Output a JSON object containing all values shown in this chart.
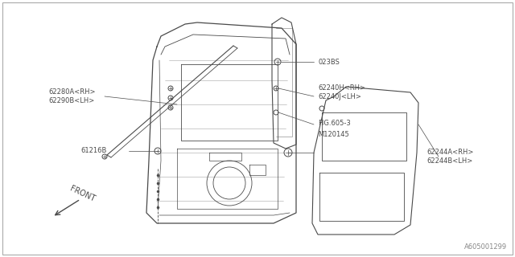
{
  "background_color": "#ffffff",
  "line_color": "#4a4a4a",
  "label_color": "#4a4a4a",
  "figure_id": "A605001299",
  "fig_w": 6.4,
  "fig_h": 3.2,
  "labels": {
    "part_62280": "62280A<RH>\n62290B<LH>",
    "part_62240": "62240H<RH>\n62240J<LH>",
    "part_023BS": "023BS",
    "part_FIG": "FIG.605-3",
    "part_M120145": "M120145",
    "part_61216B": "61216B",
    "part_62244": "62244A<RH>\n62244B<LH>",
    "front_label": "FRONT"
  }
}
